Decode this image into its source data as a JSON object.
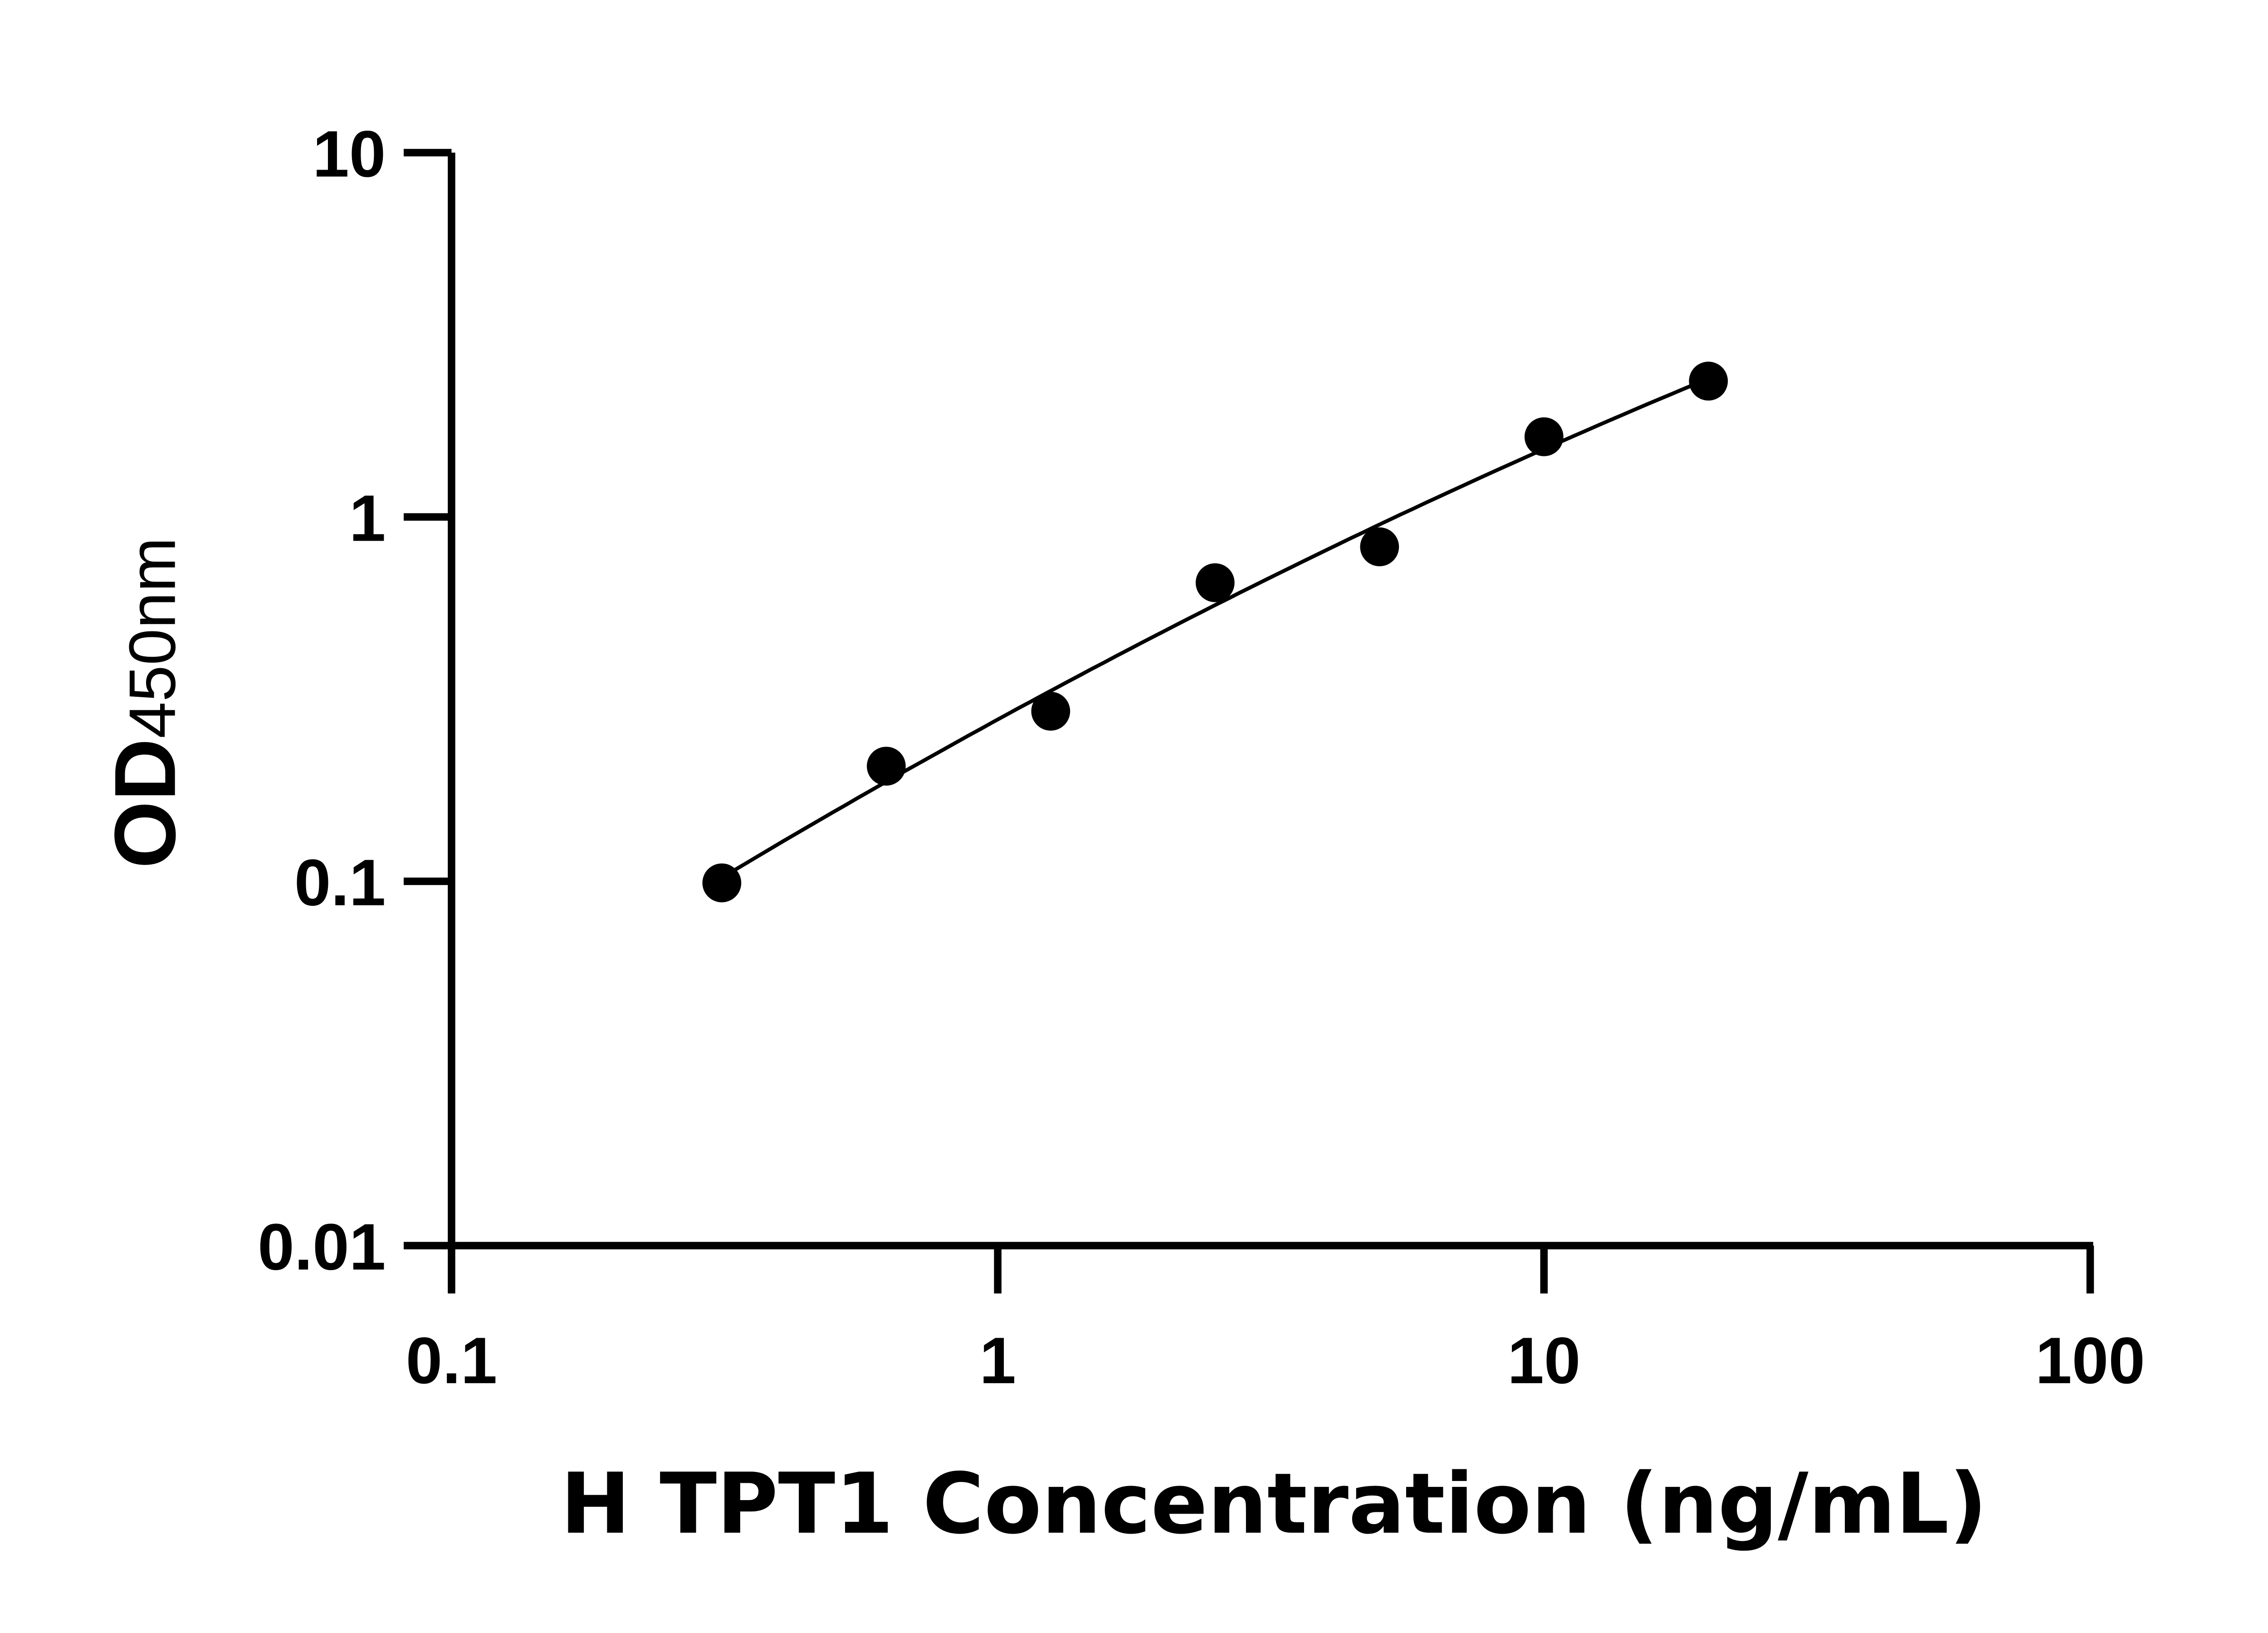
{
  "chart_data": {
    "type": "scatter",
    "xlabel": "H TPT1 Concentration (ng/mL)",
    "ylabel_main": "OD",
    "ylabel_sub": "450nm",
    "x_scale": "log",
    "y_scale": "log",
    "xlim": [
      0.1,
      100
    ],
    "ylim": [
      0.01,
      10
    ],
    "x_ticks": [
      "0.1",
      "1",
      "10",
      "100"
    ],
    "y_ticks": [
      "0.01",
      "0.1",
      "1",
      "10"
    ],
    "grid": false,
    "fit_line": true,
    "marker_color": "#000000",
    "points": [
      {
        "x": 0.3125,
        "y": 0.099
      },
      {
        "x": 0.625,
        "y": 0.207
      },
      {
        "x": 1.25,
        "y": 0.293
      },
      {
        "x": 2.5,
        "y": 0.66
      },
      {
        "x": 5,
        "y": 0.828
      },
      {
        "x": 10,
        "y": 1.66
      },
      {
        "x": 20,
        "y": 2.36
      }
    ]
  }
}
